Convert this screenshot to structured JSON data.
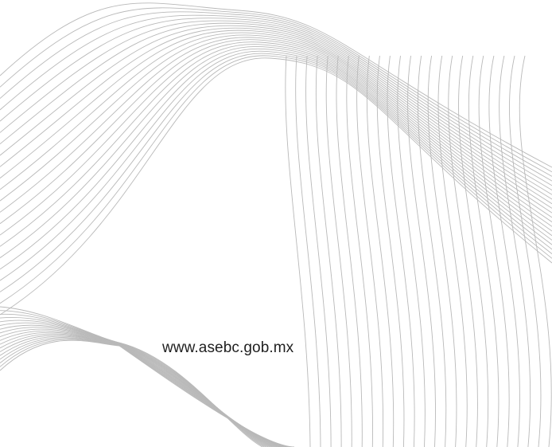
{
  "footer": {
    "url": "www.asebc.gob.mx"
  },
  "decoration": {
    "name": "wave-line-pattern",
    "stroke_color": "#b9b9b9"
  }
}
